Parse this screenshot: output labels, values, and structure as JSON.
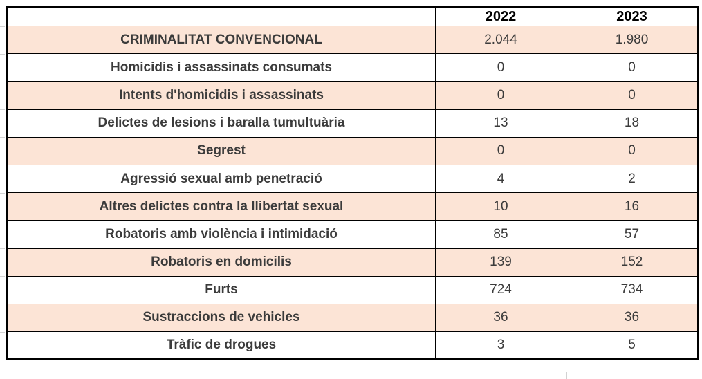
{
  "chart_data": {
    "type": "table",
    "title": "",
    "columns": [
      "",
      "2022",
      "2023"
    ],
    "categories": [
      "CRIMINALITAT CONVENCIONAL",
      "Homicidis i assassinats consumats",
      "Intents d'homicidis i assassinats",
      "Delictes de lesions i baralla tumultuària",
      "Segrest",
      "Agressió sexual amb penetració",
      "Altres delictes contra la llibertat sexual",
      "Robatoris amb violència i intimidació",
      "Robatoris en domicilis",
      "Furts",
      "Sustraccions de vehicles",
      "Tràfic de drogues"
    ],
    "series": [
      {
        "name": "2022",
        "values": [
          2044,
          0,
          0,
          13,
          0,
          4,
          10,
          85,
          139,
          724,
          36,
          3
        ]
      },
      {
        "name": "2023",
        "values": [
          1980,
          0,
          0,
          18,
          0,
          2,
          16,
          57,
          152,
          734,
          36,
          5
        ]
      }
    ],
    "layout": {
      "striped_rows": true,
      "first_data_row_highlighted": true,
      "grid": true,
      "legend_position": "none"
    }
  },
  "table": {
    "columns": [
      "",
      "2022",
      "2023"
    ],
    "rows": [
      {
        "label": "CRIMINALITAT CONVENCIONAL",
        "y2022": "2.044",
        "y2023": "1.980"
      },
      {
        "label": "Homicidis i assassinats consumats",
        "y2022": "0",
        "y2023": "0"
      },
      {
        "label": "Intents d'homicidis i assassinats",
        "y2022": "0",
        "y2023": "0"
      },
      {
        "label": "Delictes de lesions i baralla tumultuària",
        "y2022": "13",
        "y2023": "18"
      },
      {
        "label": "Segrest",
        "y2022": "0",
        "y2023": "0"
      },
      {
        "label": "Agressió sexual amb penetració",
        "y2022": "4",
        "y2023": "2"
      },
      {
        "label": "Altres delictes contra la llibertat sexual",
        "y2022": "10",
        "y2023": "16"
      },
      {
        "label": "Robatoris amb violència i intimidació",
        "y2022": "85",
        "y2023": "57"
      },
      {
        "label": "Robatoris en domicilis",
        "y2022": "139",
        "y2023": "152"
      },
      {
        "label": "Furts",
        "y2022": "724",
        "y2023": "734"
      },
      {
        "label": "Sustraccions de vehicles",
        "y2022": "36",
        "y2023": "36"
      },
      {
        "label": "Tràfic de drogues",
        "y2022": "3",
        "y2023": "5"
      }
    ]
  },
  "colors": {
    "row_highlight": "#fce4d6",
    "border": "#000000",
    "text": "#3b3b3b",
    "header_text": "#000000",
    "gridline_stub": "#d2d2d2"
  }
}
